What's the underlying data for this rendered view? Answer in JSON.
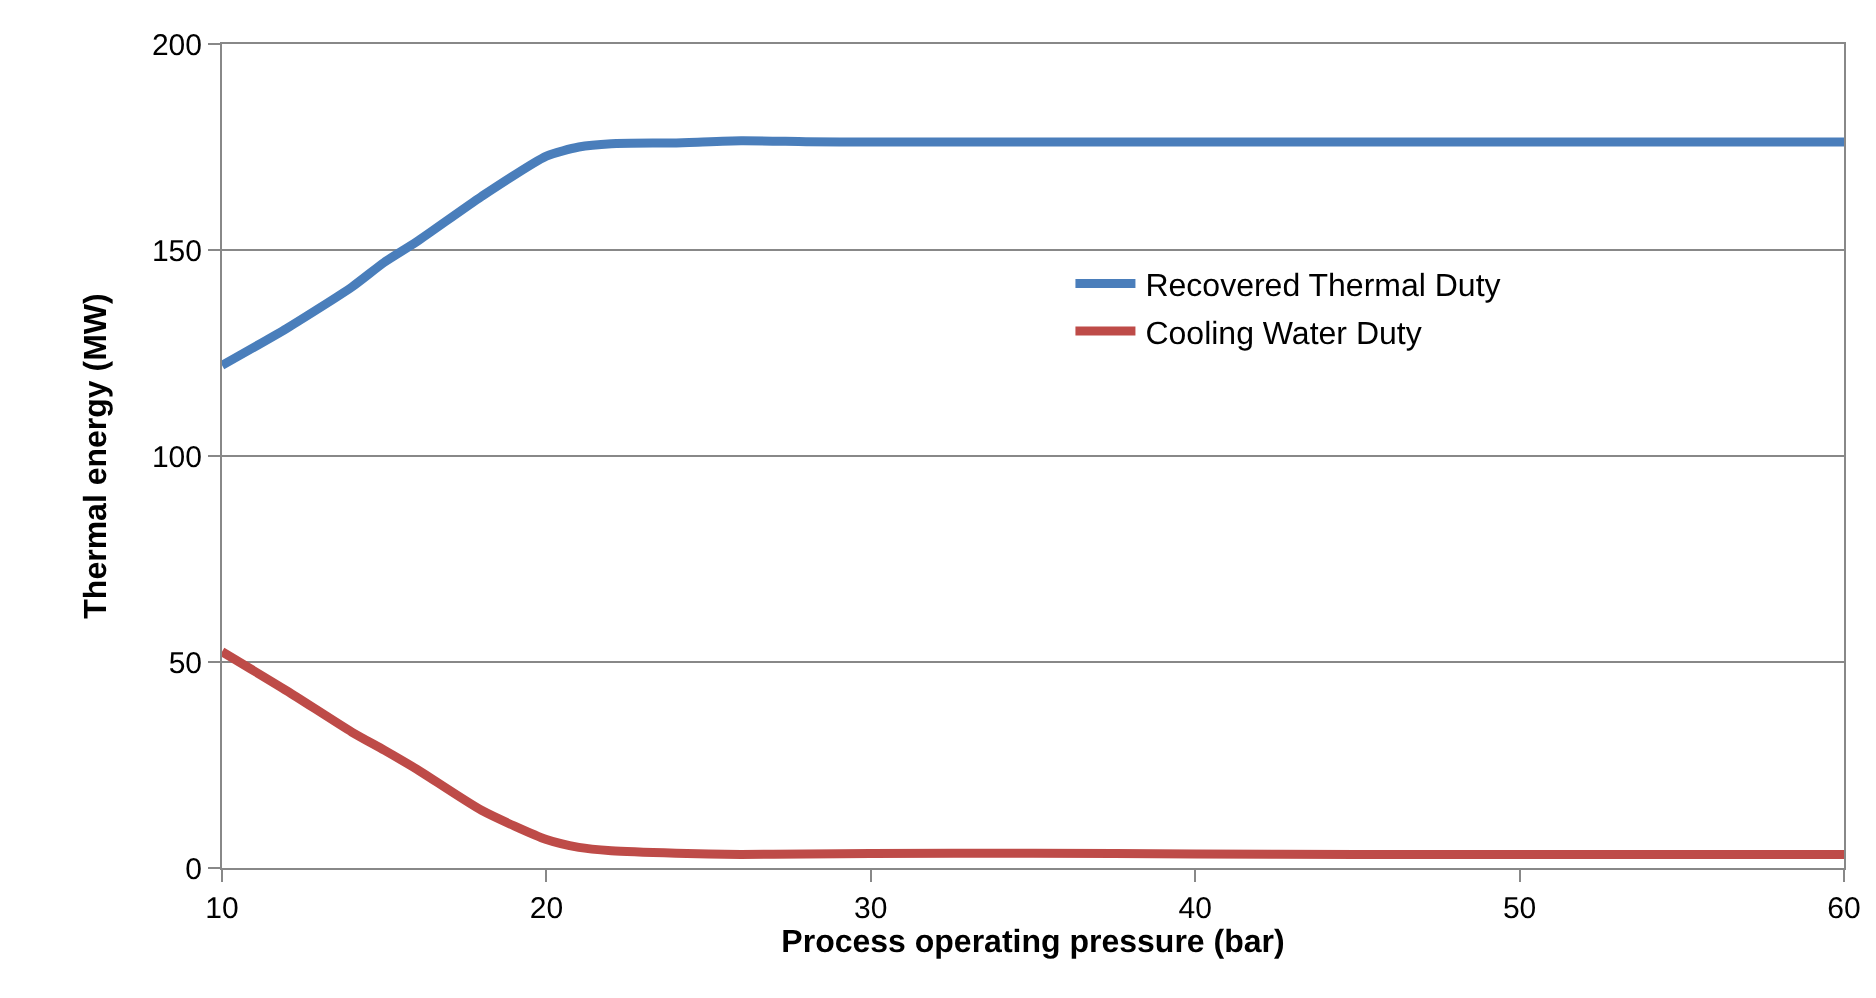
{
  "chart_data": {
    "type": "line",
    "xlabel": "Process operating pressure (bar)",
    "ylabel": "Thermal energy (MW)",
    "xlim": [
      10,
      60
    ],
    "xticks": [
      10,
      20,
      30,
      40,
      50,
      60
    ],
    "ylim": [
      0,
      200
    ],
    "yticks": [
      0,
      50,
      100,
      150,
      200
    ],
    "grid": "y",
    "legend": "right",
    "marker": "none",
    "line_style": "solid",
    "series": [
      {
        "name": "Recovered Thermal Duty",
        "color": "#4a7ebb",
        "x": [
          10,
          12,
          14,
          15,
          16,
          18,
          20,
          21,
          22,
          24,
          26,
          28,
          30,
          35,
          40,
          45,
          50,
          55,
          60
        ],
        "values": [
          122,
          131,
          141,
          147,
          152,
          163,
          172.8,
          175,
          175.8,
          176,
          176.5,
          176.3,
          176.2,
          176.2,
          176.2,
          176.2,
          176.2,
          176.2,
          176.2
        ]
      },
      {
        "name": "Cooling Water Duty",
        "color": "#be4b48",
        "x": [
          10,
          12,
          14,
          15,
          16,
          18,
          20,
          21,
          22,
          24,
          26,
          28,
          30,
          35,
          40,
          45,
          50,
          55,
          60
        ],
        "values": [
          52.5,
          43,
          33,
          28.6,
          24,
          14,
          6.9,
          5,
          4.2,
          3.6,
          3.3,
          3.4,
          3.5,
          3.6,
          3.4,
          3.3,
          3.3,
          3.3,
          3.3
        ]
      }
    ]
  }
}
